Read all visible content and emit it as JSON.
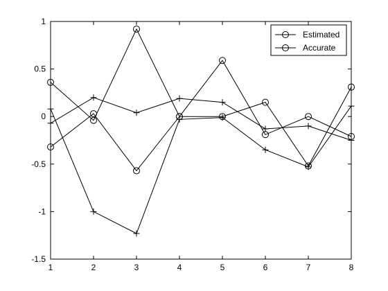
{
  "chart_data": {
    "type": "line",
    "title": "",
    "xlabel": "",
    "ylabel": "",
    "xlim": [
      1,
      8
    ],
    "ylim": [
      -1.5,
      1
    ],
    "grid": false,
    "legend_placement": "top-right",
    "x": [
      1,
      2,
      3,
      4,
      5,
      6,
      7,
      8
    ],
    "xticks": [
      "1",
      "2",
      "3",
      "4",
      "5",
      "6",
      "7",
      "8"
    ],
    "yticks": [
      "-1.5",
      "-1",
      "-0.5",
      "0",
      "0.5",
      "1"
    ],
    "ytick_values": [
      -1.5,
      -1,
      -0.5,
      0,
      0.5,
      1
    ],
    "series": [
      {
        "name": "Estimated",
        "marker": "circle",
        "values": [
          0.36,
          -0.04,
          0.92,
          0.0,
          0.59,
          -0.19,
          0.0,
          -0.21
        ]
      },
      {
        "name": "Accurate",
        "marker": "circle",
        "values": [
          -0.32,
          0.03,
          -0.57,
          0.0,
          0.0,
          0.15,
          -0.52,
          0.31
        ]
      },
      {
        "name": "",
        "marker": "plus",
        "values": [
          0.08,
          -1.0,
          -1.23,
          -0.03,
          -0.01,
          -0.35,
          -0.53,
          0.11
        ]
      },
      {
        "name": "",
        "marker": "plus",
        "values": [
          -0.07,
          0.2,
          0.04,
          0.19,
          0.15,
          -0.13,
          -0.1,
          -0.25
        ]
      }
    ],
    "colors": {
      "line": "#000000",
      "axes": "#000000",
      "background": "#ffffff"
    }
  }
}
